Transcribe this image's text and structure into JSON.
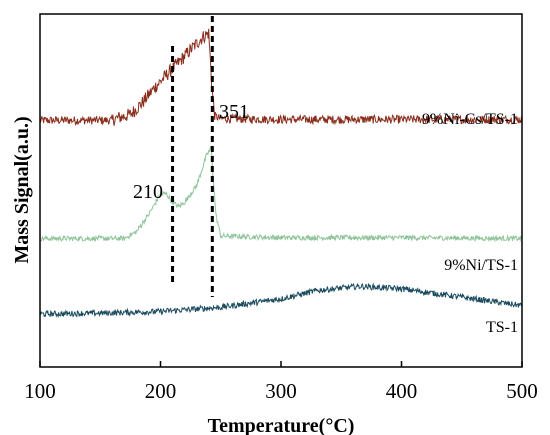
{
  "chart_data": {
    "type": "line",
    "title": "",
    "xlabel": "Temperature(°C)",
    "ylabel": "Mass Signal(a.u.)",
    "xlim": [
      100,
      500
    ],
    "x_ticks": [
      100,
      200,
      300,
      400,
      500
    ],
    "y_ticks_shown": false,
    "grid": false,
    "legend": "none",
    "series": [
      {
        "name": "9%Ni-Cs/TS-1",
        "color": "#8B2E1E",
        "x": [
          100,
          160,
          175,
          185,
          195,
          205,
          215,
          225,
          235,
          240,
          243,
          245,
          250,
          300,
          350,
          400,
          450,
          500
        ],
        "values": [
          2.92,
          2.92,
          2.98,
          3.12,
          3.3,
          3.45,
          3.6,
          3.75,
          3.9,
          3.95,
          3.25,
          2.97,
          2.94,
          2.93,
          2.93,
          2.93,
          2.93,
          2.93
        ]
      },
      {
        "name": "9%Ni/TS-1",
        "color": "#8FC49A",
        "x": [
          100,
          170,
          180,
          190,
          200,
          205,
          210,
          215,
          220,
          230,
          238,
          242,
          246,
          250,
          300,
          400,
          500
        ],
        "values": [
          1.52,
          1.52,
          1.6,
          1.8,
          2.05,
          2.05,
          1.95,
          1.9,
          1.95,
          2.15,
          2.5,
          2.6,
          1.8,
          1.55,
          1.53,
          1.53,
          1.52
        ]
      },
      {
        "name": "TS-1",
        "color": "#1B4B5E",
        "x": [
          100,
          150,
          200,
          250,
          300,
          330,
          365,
          400,
          450,
          500
        ],
        "values": [
          0.62,
          0.63,
          0.65,
          0.7,
          0.8,
          0.9,
          0.95,
          0.92,
          0.82,
          0.72
        ]
      }
    ],
    "annotations": [
      {
        "text": "210",
        "x": 210
      },
      {
        "text": "351",
        "x": 243
      }
    ],
    "vlines": [
      210,
      243
    ]
  }
}
